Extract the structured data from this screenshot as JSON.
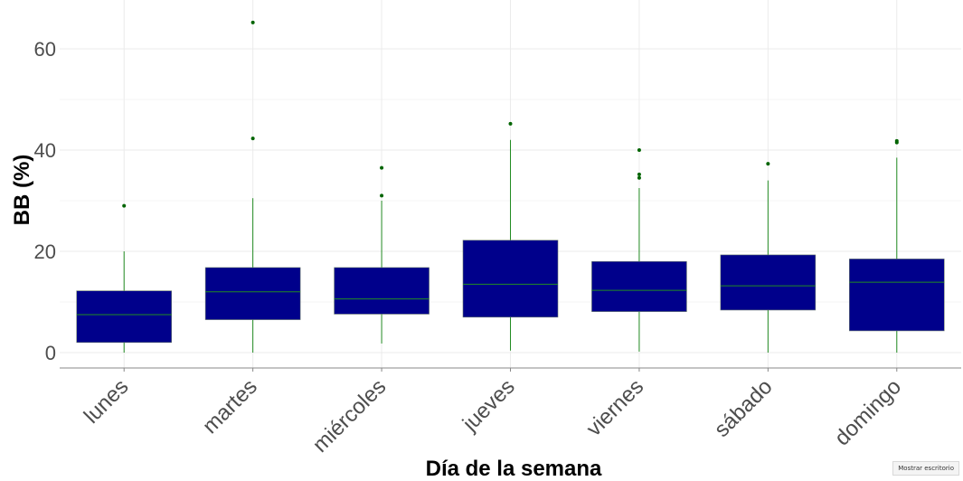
{
  "colors": {
    "box_fill": "#00008B",
    "median_line": "#228B22",
    "whisker": "#228B22",
    "outlier": "#006400",
    "grid": "#ebebeb",
    "axis_text": "#4d4d4d",
    "title_text": "#000000"
  },
  "chart_data": {
    "type": "box",
    "title": "",
    "xlabel": "Día de la semana",
    "ylabel": "BB (%)",
    "ylim": [
      -3,
      67
    ],
    "yticks": [
      0,
      20,
      40,
      60
    ],
    "grid": true,
    "categories": [
      "lunes",
      "martes",
      "miércoles",
      "jueves",
      "viernes",
      "sábado",
      "domingo"
    ],
    "boxes": [
      {
        "category": "lunes",
        "whisker_low": 0,
        "q1": 2,
        "median": 7.5,
        "q3": 12.2,
        "whisker_high": 20,
        "outliers": [
          29
        ]
      },
      {
        "category": "martes",
        "whisker_low": 0,
        "q1": 6.5,
        "median": 12,
        "q3": 16.8,
        "whisker_high": 30.5,
        "outliers": [
          42.3,
          65.2
        ]
      },
      {
        "category": "miércoles",
        "whisker_low": 1.8,
        "q1": 7.6,
        "median": 10.6,
        "q3": 16.8,
        "whisker_high": 30,
        "outliers": [
          31,
          36.5
        ]
      },
      {
        "category": "jueves",
        "whisker_low": 0.4,
        "q1": 7,
        "median": 13.5,
        "q3": 22.2,
        "whisker_high": 42,
        "outliers": [
          45.2
        ]
      },
      {
        "category": "viernes",
        "whisker_low": 0.2,
        "q1": 8.1,
        "median": 12.3,
        "q3": 18,
        "whisker_high": 32.5,
        "outliers": [
          34.5,
          35.2,
          40
        ]
      },
      {
        "category": "sábado",
        "whisker_low": 0,
        "q1": 8.4,
        "median": 13.2,
        "q3": 19.3,
        "whisker_high": 34,
        "outliers": [
          37.3
        ]
      },
      {
        "category": "domingo",
        "whisker_low": 0,
        "q1": 4.3,
        "median": 13.9,
        "q3": 18.5,
        "whisker_high": 38.5,
        "outliers": [
          41.5,
          41.8
        ]
      }
    ]
  },
  "overlay": {
    "tooltip": "Mostrar escritorio"
  }
}
